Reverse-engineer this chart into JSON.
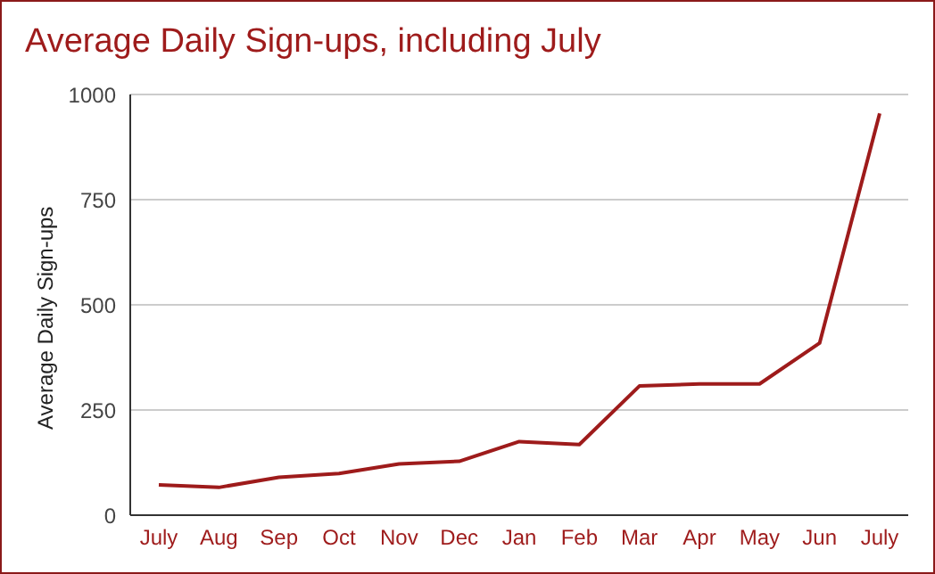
{
  "chart_data": {
    "type": "line",
    "title": "Average Daily Sign-ups, including July",
    "ylabel": "Average Daily Sign-ups",
    "categories": [
      "July",
      "Aug",
      "Sep",
      "Oct",
      "Nov",
      "Dec",
      "Jan",
      "Feb",
      "Mar",
      "Apr",
      "May",
      "Jun",
      "July"
    ],
    "series": [
      {
        "color": "#9e1b1b",
        "values": [
          72,
          66,
          90,
          99,
          122,
          128,
          175,
          168,
          307,
          312,
          312,
          409,
          955
        ]
      }
    ],
    "ylim": [
      0,
      1000
    ],
    "yticks": [
      0,
      250,
      500,
      750,
      1000
    ],
    "grid": "y",
    "legend": false,
    "marker": "none",
    "line_style": "solid"
  }
}
